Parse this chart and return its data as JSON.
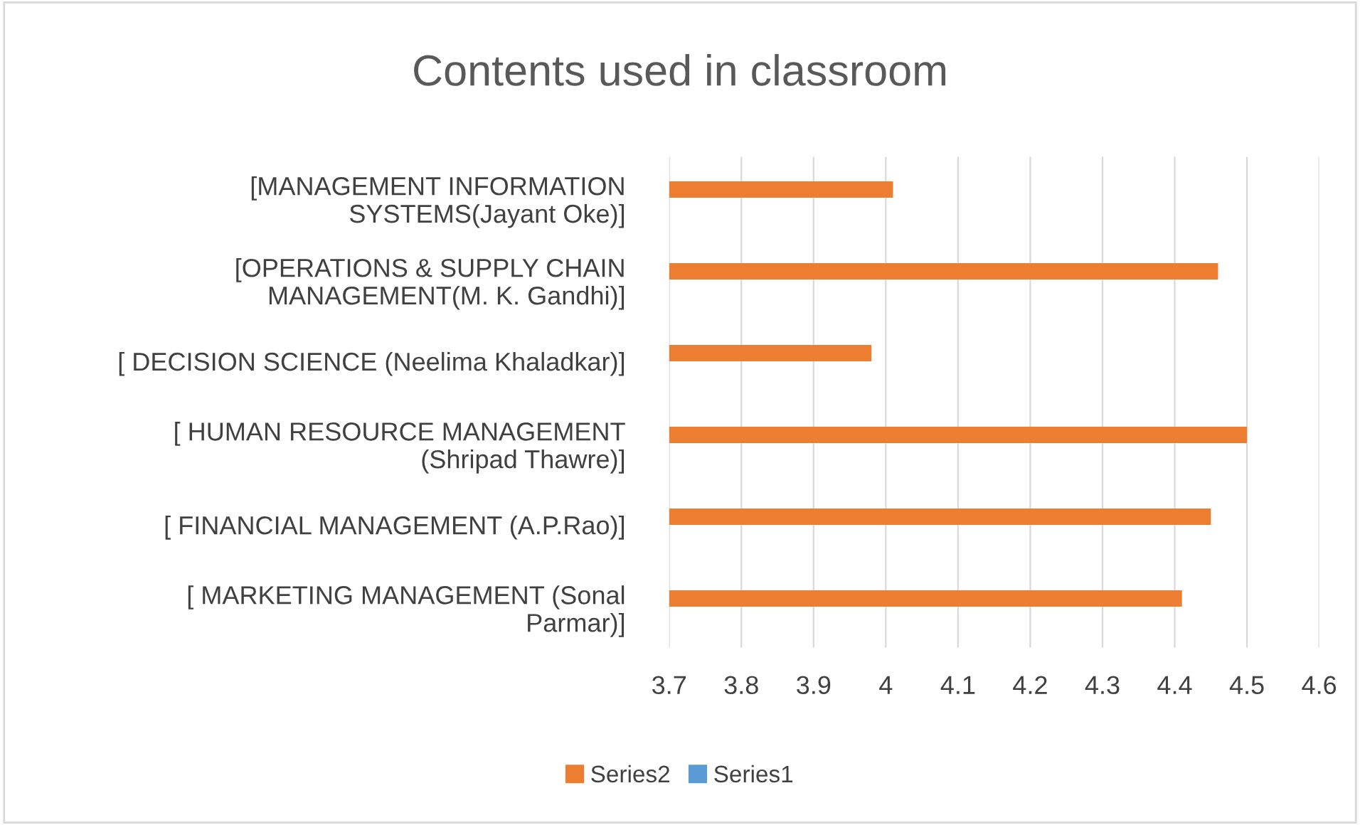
{
  "chart_data": {
    "type": "bar",
    "orientation": "horizontal",
    "title": "Contents used in classroom",
    "categories": [
      "[MANAGEMENT INFORMATION\nSYSTEMS(Jayant Oke)]",
      "[OPERATIONS & SUPPLY CHAIN\nMANAGEMENT(M. K. Gandhi)]",
      "[ DECISION SCIENCE (Neelima Khaladkar)]",
      "[ HUMAN RESOURCE MANAGEMENT\n(Shripad Thawre)]",
      "[ FINANCIAL MANAGEMENT (A.P.Rao)]",
      "[ MARKETING MANAGEMENT (Sonal\nParmar)]"
    ],
    "series": [
      {
        "name": "Series2",
        "color": "#ed7d31",
        "values": [
          4.01,
          4.46,
          3.98,
          4.5,
          4.45,
          4.41
        ]
      },
      {
        "name": "Series1",
        "color": "#5b9bd5",
        "values": [
          null,
          null,
          null,
          null,
          null,
          null
        ]
      }
    ],
    "xlim": [
      3.7,
      4.6
    ],
    "xticks": [
      3.7,
      3.8,
      3.9,
      4,
      4.1,
      4.2,
      4.3,
      4.4,
      4.5,
      4.6
    ],
    "grid": "x",
    "legend": "bottom"
  }
}
